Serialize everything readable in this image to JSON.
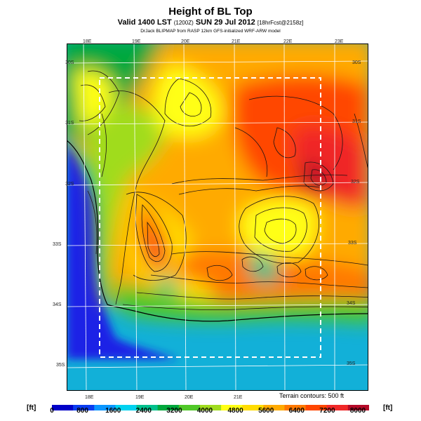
{
  "header": {
    "title": "Height of BL Top",
    "subtitle_main": "Valid 1400 LST",
    "subtitle_small": "(1200Z)",
    "subtitle_date": "SUN 29 Jul 2012",
    "subtitle_fcst": "[18hrFcst@2158z]",
    "model": "DrJack BLIPMAP from RASP 12km GFS-initialized WRF-ARW model"
  },
  "map": {
    "lon_labels_top": [
      "18E",
      "19E",
      "20E",
      "21E",
      "22E",
      "23E"
    ],
    "lon_labels_bottom": [
      "18E",
      "19E",
      "20E",
      "21E"
    ],
    "lat_labels_left": [
      "30S",
      "31S",
      "32S",
      "33S",
      "34S",
      "35S"
    ],
    "lat_labels_right": [
      "30S",
      "31S",
      "32S",
      "33S",
      "34S",
      "35S"
    ],
    "terrain_note": "Terrain contours: 500 ft",
    "ocean_color": "#1a22e6",
    "dashed_box_color": "#ffffff"
  },
  "colorbar": {
    "unit_left": "[ft]",
    "unit_right": "[ft]",
    "ticks": [
      "0",
      "800",
      "1600",
      "2400",
      "3200",
      "4000",
      "4800",
      "5600",
      "6400",
      "7200",
      "8000"
    ],
    "colors": [
      "#0000c8",
      "#0a3cf0",
      "#0a96ff",
      "#00d2f0",
      "#00c08c",
      "#00a83c",
      "#50c828",
      "#a0dc1e",
      "#ffff14",
      "#ffdc00",
      "#ffaa00",
      "#ff7800",
      "#ff4600",
      "#f02828",
      "#b40a28"
    ]
  }
}
